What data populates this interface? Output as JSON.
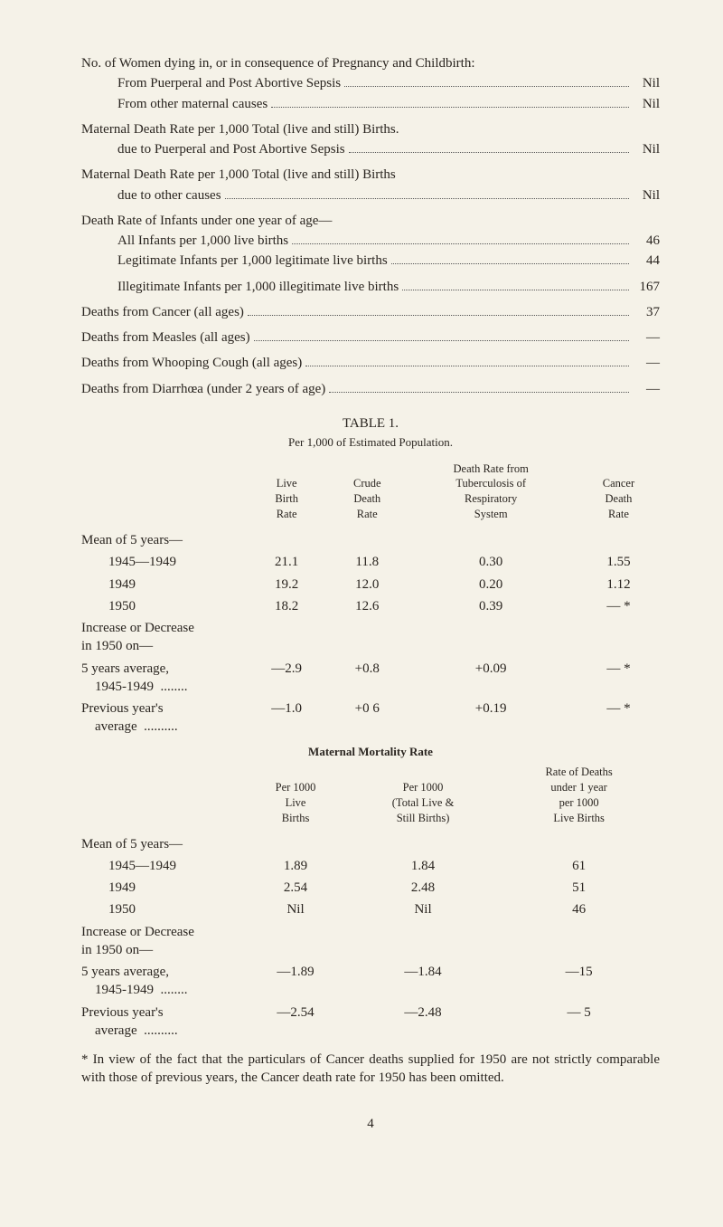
{
  "stats": [
    {
      "label": "No. of Women dying in, or in consequence of Pregnancy and Childbirth:",
      "value": "",
      "indent": 0,
      "nodots": true
    },
    {
      "label": "From Puerperal and Post Abortive Sepsis",
      "value": "Nil",
      "indent": 1
    },
    {
      "label": "From other maternal causes",
      "value": "Nil",
      "indent": 1
    },
    {
      "label": "Maternal Death Rate per 1,000 Total (live and still) Births.",
      "value": "",
      "indent": 0,
      "nodots": true,
      "gap": true
    },
    {
      "label": "due to Puerperal and Post Abortive Sepsis",
      "value": "Nil",
      "indent": 1
    },
    {
      "label": "Maternal Death Rate per 1,000 Total (live and still) Births",
      "value": "",
      "indent": 0,
      "nodots": true,
      "gap": true
    },
    {
      "label": "due to other causes",
      "value": "Nil",
      "indent": 1
    },
    {
      "label": "Death Rate of Infants under one year of age—",
      "value": "",
      "indent": 0,
      "nodots": true,
      "gap": true
    },
    {
      "label": "All Infants per 1,000 live births",
      "value": "46",
      "indent": 1
    },
    {
      "label": "Legitimate Infants per 1,000 legitimate live births",
      "value": "44",
      "indent": 1
    },
    {
      "label": "Illegitimate Infants per 1,000 illegitimate live births",
      "value": "167",
      "indent": 1,
      "gap": true
    },
    {
      "label": "Deaths from Cancer (all ages)",
      "value": "37",
      "indent": 0,
      "gap": true
    },
    {
      "label": "Deaths from Measles (all ages)",
      "value": "—",
      "indent": 0,
      "gap": true
    },
    {
      "label": "Deaths from Whooping Cough (all ages)",
      "value": "—",
      "indent": 0,
      "gap": true
    },
    {
      "label": "Deaths from Diarrhœa (under 2 years of age)",
      "value": "—",
      "indent": 0,
      "gap": true
    }
  ],
  "table1": {
    "title": "TABLE 1.",
    "subtitle": "Per 1,000 of Estimated Population.",
    "headers": {
      "c1": "Live\nBirth\nRate",
      "c2": "Crude\nDeath\nRate",
      "c3": "Death Rate from\nTuberculosis of\nRespiratory\nSystem",
      "c4": "Cancer\nDeath\nRate"
    },
    "group1_label": "Mean of 5 years—",
    "rows1": [
      {
        "label": "1945—1949",
        "c1": "21.1",
        "c2": "11.8",
        "c3": "0.30",
        "c4": "1.55"
      },
      {
        "label": "1949",
        "c1": "19.2",
        "c2": "12.0",
        "c3": "0.20",
        "c4": "1.12"
      },
      {
        "label": "1950",
        "c1": "18.2",
        "c2": "12.6",
        "c3": "0.39",
        "c4": "— *"
      }
    ],
    "group2_label": "Increase or Decrease\nin 1950 on—",
    "rows2": [
      {
        "label": "5 years average,\n1945-1949",
        "suffix": "........",
        "c1": "—2.9",
        "c2": "+0.8",
        "c3": "+0.09",
        "c4": "— *"
      },
      {
        "label": "Previous year's\naverage",
        "suffix": "..........",
        "c1": "—1.0",
        "c2": "+0 6",
        "c3": "+0.19",
        "c4": "— *"
      }
    ]
  },
  "mortality": {
    "title": "Maternal Mortality Rate",
    "headers": {
      "c1": "Per 1000\nLive\nBirths",
      "c2": "Per 1000\n(Total Live &\nStill Births)",
      "c3": "Rate of Deaths\nunder 1 year\nper 1000\nLive Births"
    },
    "group1_label": "Mean of 5 years—",
    "rows1": [
      {
        "label": "1945—1949",
        "c1": "1.89",
        "c2": "1.84",
        "c3": "61"
      },
      {
        "label": "1949",
        "c1": "2.54",
        "c2": "2.48",
        "c3": "51"
      },
      {
        "label": "1950",
        "c1": "Nil",
        "c2": "Nil",
        "c3": "46"
      }
    ],
    "group2_label": "Increase or Decrease\nin 1950 on—",
    "rows2": [
      {
        "label": "5 years average,\n1945-1949",
        "suffix": "........",
        "c1": "—1.89",
        "c2": "—1.84",
        "c3": "—15"
      },
      {
        "label": "Previous year's\naverage",
        "suffix": "..........",
        "c1": "—2.54",
        "c2": "—2.48",
        "c3": "— 5"
      }
    ]
  },
  "footnote": "* In view of the fact that the particulars of Cancer deaths supplied for 1950 are not strictly comparable with those of previous years, the Cancer death rate for 1950 has been omitted.",
  "page_number": "4"
}
